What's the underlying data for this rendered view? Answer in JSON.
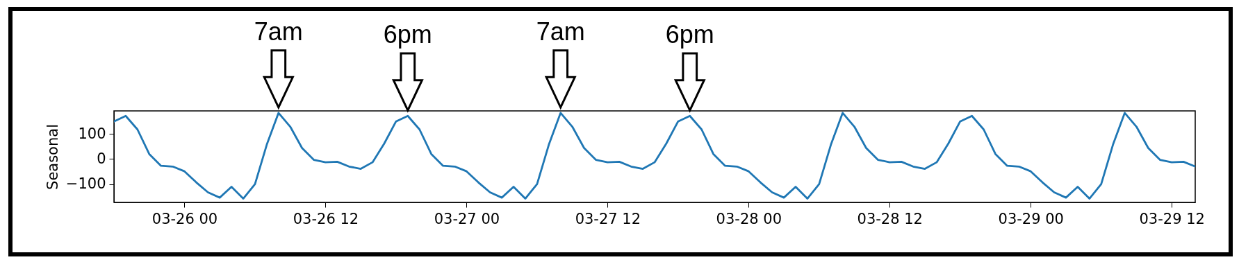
{
  "chart_data": {
    "type": "line",
    "ylabel": "Seasonal",
    "x": [
      "--03-25T18:00",
      "--03-25T19:00",
      "--03-25T20:00",
      "--03-25T21:00",
      "--03-25T22:00",
      "--03-25T23:00",
      "--03-26T00:00",
      "--03-26T01:00",
      "--03-26T02:00",
      "--03-26T03:00",
      "--03-26T04:00",
      "--03-26T05:00",
      "--03-26T06:00",
      "--03-26T07:00",
      "--03-26T08:00",
      "--03-26T09:00",
      "--03-26T10:00",
      "--03-26T11:00",
      "--03-26T12:00",
      "--03-26T13:00",
      "--03-26T14:00",
      "--03-26T15:00",
      "--03-26T16:00",
      "--03-26T17:00",
      "--03-26T18:00",
      "--03-26T19:00",
      "--03-26T20:00",
      "--03-26T21:00",
      "--03-26T22:00",
      "--03-26T23:00",
      "--03-27T00:00",
      "--03-27T01:00",
      "--03-27T02:00",
      "--03-27T03:00",
      "--03-27T04:00",
      "--03-27T05:00",
      "--03-27T06:00",
      "--03-27T07:00",
      "--03-27T08:00",
      "--03-27T09:00",
      "--03-27T10:00",
      "--03-27T11:00",
      "--03-27T12:00",
      "--03-27T13:00",
      "--03-27T14:00",
      "--03-27T15:00",
      "--03-27T16:00",
      "--03-27T17:00",
      "--03-27T18:00",
      "--03-27T19:00",
      "--03-27T20:00",
      "--03-27T21:00",
      "--03-27T22:00",
      "--03-27T23:00",
      "--03-28T00:00",
      "--03-28T01:00",
      "--03-28T02:00",
      "--03-28T03:00",
      "--03-28T04:00",
      "--03-28T05:00",
      "--03-28T06:00",
      "--03-28T07:00",
      "--03-28T08:00",
      "--03-28T09:00",
      "--03-28T10:00",
      "--03-28T11:00",
      "--03-28T12:00",
      "--03-28T13:00",
      "--03-28T14:00",
      "--03-28T15:00",
      "--03-28T16:00",
      "--03-28T17:00",
      "--03-28T18:00",
      "--03-28T19:00",
      "--03-28T20:00",
      "--03-28T21:00",
      "--03-28T22:00",
      "--03-28T23:00",
      "--03-29T00:00",
      "--03-29T01:00",
      "--03-29T02:00",
      "--03-29T03:00",
      "--03-29T04:00",
      "--03-29T05:00",
      "--03-29T06:00",
      "--03-29T07:00",
      "--03-29T08:00",
      "--03-29T09:00",
      "--03-29T10:00",
      "--03-29T11:00",
      "--03-29T12:00",
      "--03-29T13:00",
      "--03-29T14:00"
    ],
    "series": [
      {
        "color": "#1f77b4",
        "values": [
          150,
          172,
          118,
          20,
          -27,
          -30,
          -49,
          -93,
          -133,
          -154,
          -111,
          -158,
          -100,
          57,
          184,
          129,
          44,
          -3,
          -13,
          -11,
          -30,
          -39,
          -13,
          62,
          150,
          172,
          118,
          20,
          -27,
          -30,
          -49,
          -93,
          -133,
          -154,
          -111,
          -158,
          -100,
          57,
          184,
          129,
          44,
          -3,
          -13,
          -11,
          -30,
          -39,
          -13,
          62,
          150,
          172,
          118,
          20,
          -27,
          -30,
          -49,
          -93,
          -133,
          -154,
          -111,
          -158,
          -100,
          57,
          184,
          129,
          44,
          -3,
          -13,
          -11,
          -30,
          -39,
          -13,
          62,
          150,
          172,
          118,
          20,
          -27,
          -30,
          -49,
          -93,
          -133,
          -154,
          -111,
          -158,
          -100,
          57,
          184,
          129,
          44,
          -3,
          -13,
          -11,
          -30
        ]
      }
    ],
    "xlim": [
      "--03-25T18:00",
      "--03-29T14:00"
    ],
    "xticks": [
      {
        "value": "--03-26T00:00",
        "label": "03-26 00"
      },
      {
        "value": "--03-26T12:00",
        "label": "03-26 12"
      },
      {
        "value": "--03-27T00:00",
        "label": "03-27 00"
      },
      {
        "value": "--03-27T12:00",
        "label": "03-27 12"
      },
      {
        "value": "--03-28T00:00",
        "label": "03-28 00"
      },
      {
        "value": "--03-28T12:00",
        "label": "03-28 12"
      },
      {
        "value": "--03-29T00:00",
        "label": "03-29 00"
      },
      {
        "value": "--03-29T12:00",
        "label": "03-29 12"
      }
    ],
    "ylim": [
      -173,
      192
    ],
    "yticks": [
      -100,
      0,
      100
    ],
    "annotations": [
      {
        "text": "7am",
        "x": "--03-26T08:00",
        "y": 184
      },
      {
        "text": "6pm",
        "x": "--03-26T19:00",
        "y": 172
      },
      {
        "text": "7am",
        "x": "--03-27T08:00",
        "y": 184
      },
      {
        "text": "6pm",
        "x": "--03-27T19:00",
        "y": 172
      }
    ],
    "grid": false,
    "marker": "none",
    "line_style": "solid"
  }
}
